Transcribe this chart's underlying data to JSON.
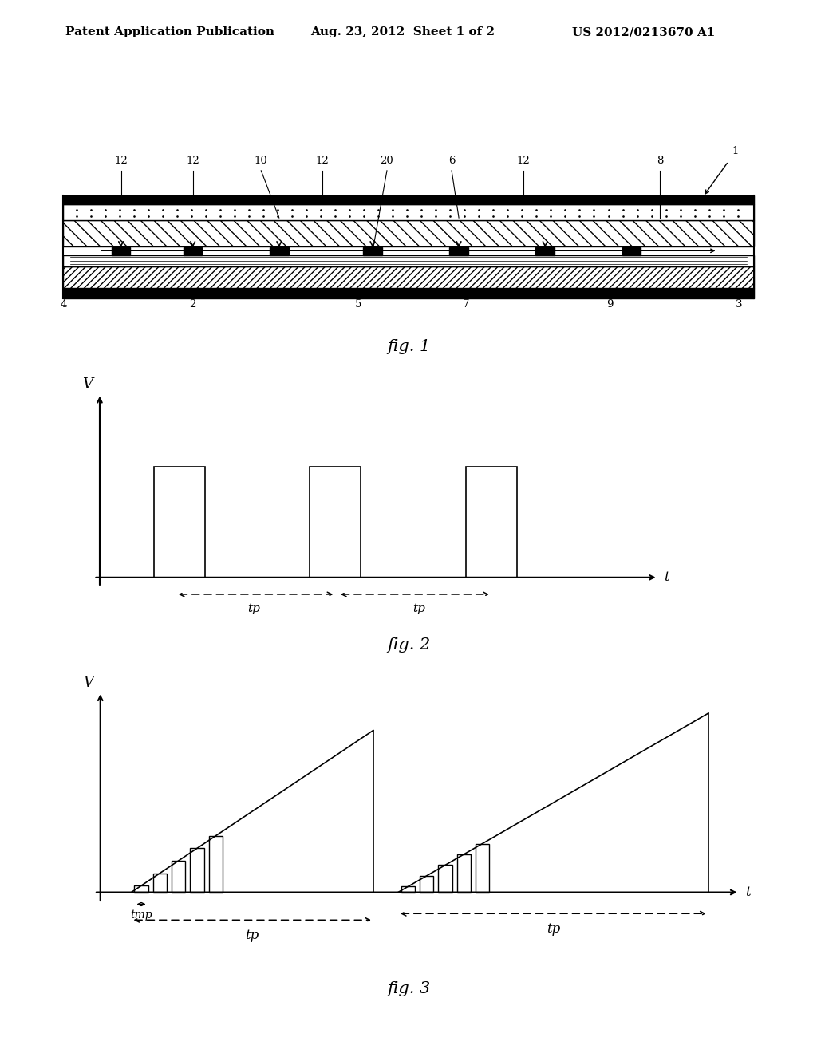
{
  "bg_color": "#ffffff",
  "header_left": "Patent Application Publication",
  "header_mid": "Aug. 23, 2012  Sheet 1 of 2",
  "header_right": "US 2012/0213670 A1",
  "fig1_label": "fig. 1",
  "fig2_label": "fig. 2",
  "fig3_label": "fig. 3"
}
